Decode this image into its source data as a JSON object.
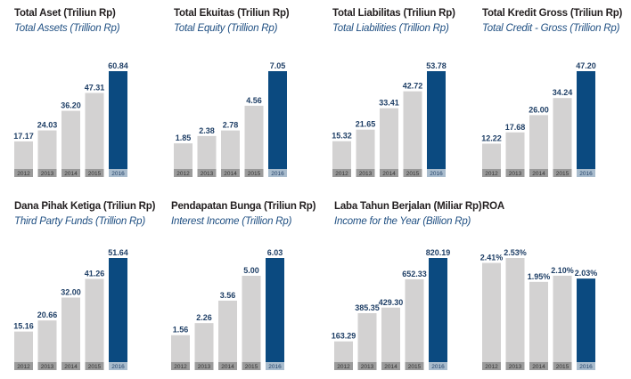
{
  "colors": {
    "bar": "#d3d2d2",
    "bar_highlight": "#0b4a80",
    "year_box": "#9b9b9b",
    "year_box_highlight": "#a9bccd",
    "title": "#231f20",
    "subtitle": "#1f4f82",
    "value_label": "#1f3f66"
  },
  "chart_data": [
    {
      "type": "bar",
      "title": "Total Aset (Triliun Rp)",
      "subtitle": "Total Assets (Trillion Rp)",
      "categories": [
        "2012",
        "2013",
        "2014",
        "2015",
        "2016"
      ],
      "values": [
        17.17,
        24.03,
        36.2,
        47.31,
        60.84
      ],
      "value_labels": [
        "17.17",
        "24.03",
        "36.20",
        "47.31",
        "60.84"
      ],
      "highlight_index": 4
    },
    {
      "type": "bar",
      "title": "Total Ekuitas (Triliun Rp)",
      "subtitle": "Total Equity (Trillion Rp)",
      "categories": [
        "2012",
        "2013",
        "2014",
        "2015",
        "2016"
      ],
      "values": [
        1.85,
        2.38,
        2.78,
        4.56,
        7.05
      ],
      "value_labels": [
        "1.85",
        "2.38",
        "2.78",
        "4.56",
        "7.05"
      ],
      "highlight_index": 4
    },
    {
      "type": "bar",
      "title": "Total Liabilitas (Triliun Rp)",
      "subtitle": "Total Liabilities (Trillion Rp)",
      "categories": [
        "2012",
        "2013",
        "2014",
        "2015",
        "2016"
      ],
      "values": [
        15.32,
        21.65,
        33.41,
        42.72,
        53.78
      ],
      "value_labels": [
        "15.32",
        "21.65",
        "33.41",
        "42.72",
        "53.78"
      ],
      "highlight_index": 4
    },
    {
      "type": "bar",
      "title": "Total Kredit Gross (Triliun Rp)",
      "subtitle": "Total Credit - Gross (Trillion Rp)",
      "categories": [
        "2012",
        "2013",
        "2014",
        "2015",
        "2016"
      ],
      "values": [
        12.22,
        17.68,
        26.0,
        34.24,
        47.2
      ],
      "value_labels": [
        "12.22",
        "17.68",
        "26.00",
        "34.24",
        "47.20"
      ],
      "highlight_index": 4
    },
    {
      "type": "bar",
      "title": "Dana Pihak Ketiga (Triliun Rp)",
      "subtitle": "Third Party Funds (Trillion Rp)",
      "categories": [
        "2012",
        "2013",
        "2014",
        "2015",
        "2016"
      ],
      "values": [
        15.16,
        20.66,
        32.0,
        41.26,
        51.64
      ],
      "value_labels": [
        "15.16",
        "20.66",
        "32.00",
        "41.26",
        "51.64"
      ],
      "highlight_index": 4
    },
    {
      "type": "bar",
      "title": "Pendapatan Bunga (Triliun Rp)",
      "subtitle": "Interest Income (Trillion Rp)",
      "categories": [
        "2012",
        "2013",
        "2014",
        "2015",
        "2016"
      ],
      "values": [
        1.56,
        2.26,
        3.56,
        5.0,
        6.03
      ],
      "value_labels": [
        "1.56",
        "2.26",
        "3.56",
        "5.00",
        "6.03"
      ],
      "highlight_index": 4
    },
    {
      "type": "bar",
      "title": "Laba Tahun Berjalan (Miliar Rp)",
      "subtitle": "Income for the Year (Billion Rp)",
      "categories": [
        "2012",
        "2013",
        "2014",
        "2015",
        "2016"
      ],
      "values": [
        163.29,
        385.35,
        429.3,
        652.33,
        820.19
      ],
      "value_labels": [
        "163.29",
        "385.35",
        "429.30",
        "652.33",
        "820.19"
      ],
      "highlight_index": 4
    },
    {
      "type": "bar",
      "title": "ROA",
      "subtitle": "",
      "categories": [
        "2012",
        "2013",
        "2014",
        "2015",
        "2016"
      ],
      "values": [
        2.41,
        2.53,
        1.95,
        2.1,
        2.03
      ],
      "value_labels": [
        "2.41%",
        "2.53%",
        "1.95%",
        "2.10%",
        "2.03%"
      ],
      "highlight_index": 4
    }
  ]
}
